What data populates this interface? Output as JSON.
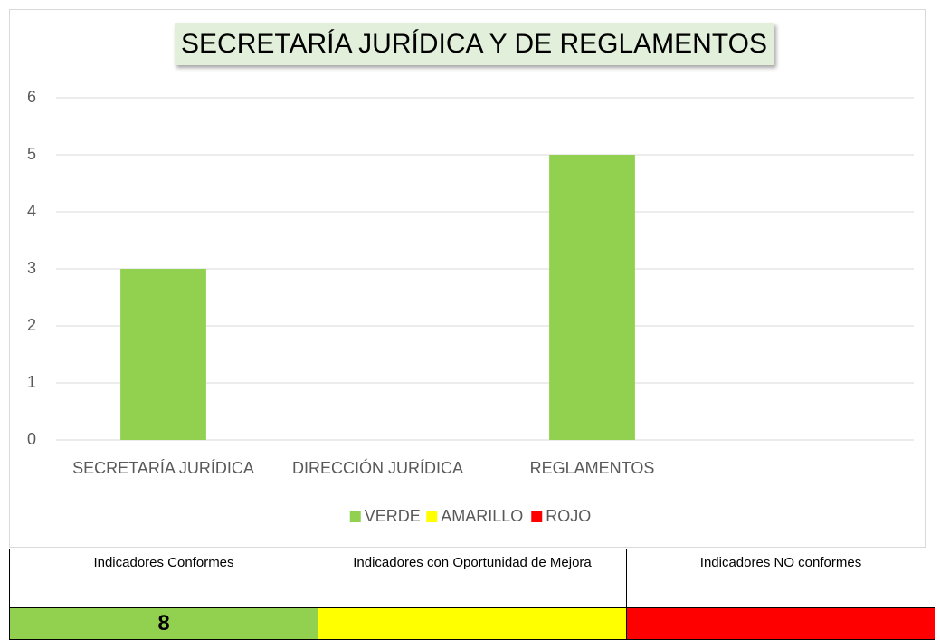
{
  "chart_data": {
    "type": "stacked_bar",
    "title": "SECRETARÍA JURÍDICA Y DE REGLAMENTOS",
    "categories": [
      "SECRETARÍA JURÍDICA",
      "DIRECCIÓN JURÍDICA",
      "REGLAMENTOS",
      null
    ],
    "series": [
      {
        "name": "VERDE",
        "color": "#92d050",
        "values": [
          3,
          0,
          5,
          null
        ]
      },
      {
        "name": "AMARILLO",
        "color": "#ffff00",
        "values": [
          0,
          0,
          0,
          null
        ]
      },
      {
        "name": "ROJO",
        "color": "#ff0000",
        "values": [
          0,
          0,
          0,
          null
        ]
      }
    ],
    "ylim": [
      0,
      6
    ],
    "yticks": [
      0,
      1,
      2,
      3,
      4,
      5,
      6
    ],
    "grid": true,
    "legend": "bottom"
  },
  "table": {
    "headers": [
      "Indicadores Conformes",
      "Indicadores con Oportunidad de Mejora",
      "Indicadores NO conformes"
    ],
    "cells": [
      {
        "text": "8",
        "color": "#92d050"
      },
      {
        "color": "#ffff00"
      },
      {
        "color": "#ff0000"
      }
    ]
  }
}
